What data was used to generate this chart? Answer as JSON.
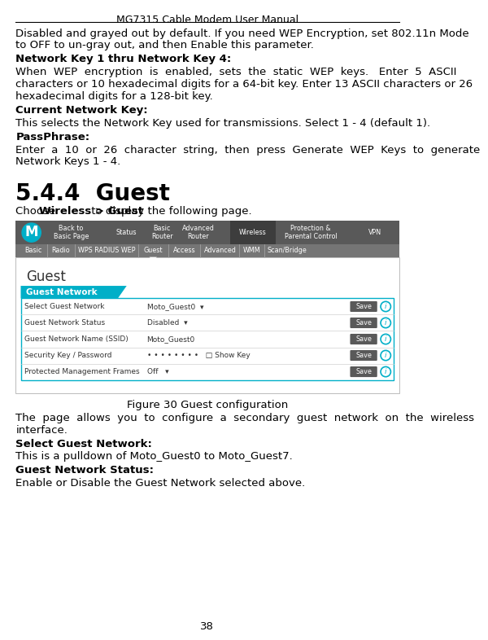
{
  "title": "MG7315 Cable Modem User Manual",
  "page_num": "38",
  "bg_color": "#ffffff",
  "text_color": "#000000",
  "para1_line1": "Disabled and grayed out by default. If you need WEP Encryption, set 802.11n Mode",
  "para1_line2": "to OFF to un-gray out, and then Enable this parameter.",
  "bold1": "Network Key 1 thru Network Key 4:",
  "para2_line1": "When  WEP  encryption  is  enabled,  sets  the  static  WEP  keys.   Enter  5  ASCII",
  "para2_line2": "characters or 10 hexadecimal digits for a 64-bit key. Enter 13 ASCII characters or 26",
  "para2_line3": "hexadecimal digits for a 128-bit key.",
  "bold2": "Current Network Key:",
  "para3": "This selects the Network Key used for transmissions. Select 1 - 4 (default 1).",
  "bold3": "PassPhrase:",
  "para4_line1": "Enter  a  10  or  26  character  string,  then  press  Generate  WEP  Keys  to  generate",
  "para4_line2": "Network Keys 1 - 4.",
  "section": "5.4.4  Guest",
  "intro_normal": "Choose ",
  "intro_bold": "Wireless > Guest",
  "intro_end": " to display the following page.",
  "fig_caption": "Figure 30 Guest configuration",
  "desc1_line1": "The  page  allows  you  to  configure  a  secondary  guest  network  on  the  wireless",
  "desc1_line2": "interface.",
  "bold4": "Select Guest Network:",
  "desc2": "This is a pulldown of Moto_Guest0 to Moto_Guest7.",
  "bold5": "Guest Network Status:",
  "desc3": "Enable or Disable the Guest Network selected above.",
  "nav_bg": "#595959",
  "nav_dark": "#3d3d3d",
  "tab_bg": "#757575",
  "teal": "#00afc8",
  "table_border": "#00afc8",
  "save_btn": "#595959",
  "logo_color": "#00afc8",
  "row_border": "#d0d0d0",
  "fs_body": 9.5,
  "fs_title": 9.0,
  "lh": 19
}
